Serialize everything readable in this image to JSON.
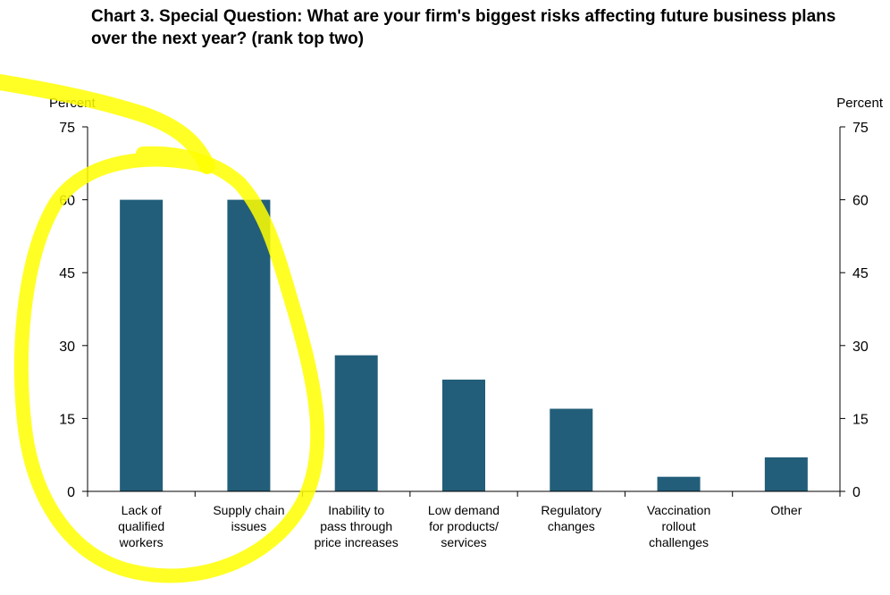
{
  "chart_data": {
    "type": "bar",
    "title": "Chart 3. Special Question: What are your firm's biggest risks affecting future business plans over the next year? (rank top two)",
    "ylabel_left": "Percent",
    "ylabel_right": "Percent",
    "ylim": [
      0,
      75
    ],
    "yticks": [
      0,
      15,
      30,
      45,
      60,
      75
    ],
    "categories": [
      [
        "Lack of",
        "qualified",
        "workers"
      ],
      [
        "Supply chain",
        "issues"
      ],
      [
        "Inability to",
        "pass through",
        "price increases"
      ],
      [
        "Low demand",
        "for products/",
        "services"
      ],
      [
        "Regulatory",
        "changes"
      ],
      [
        "Vaccination",
        "rollout",
        "challenges"
      ],
      [
        "Other"
      ]
    ],
    "values": [
      60,
      60,
      28,
      23,
      17,
      3,
      7
    ],
    "bar_color": "#225e79",
    "grid": false,
    "annotation_color": "#ffff00"
  }
}
